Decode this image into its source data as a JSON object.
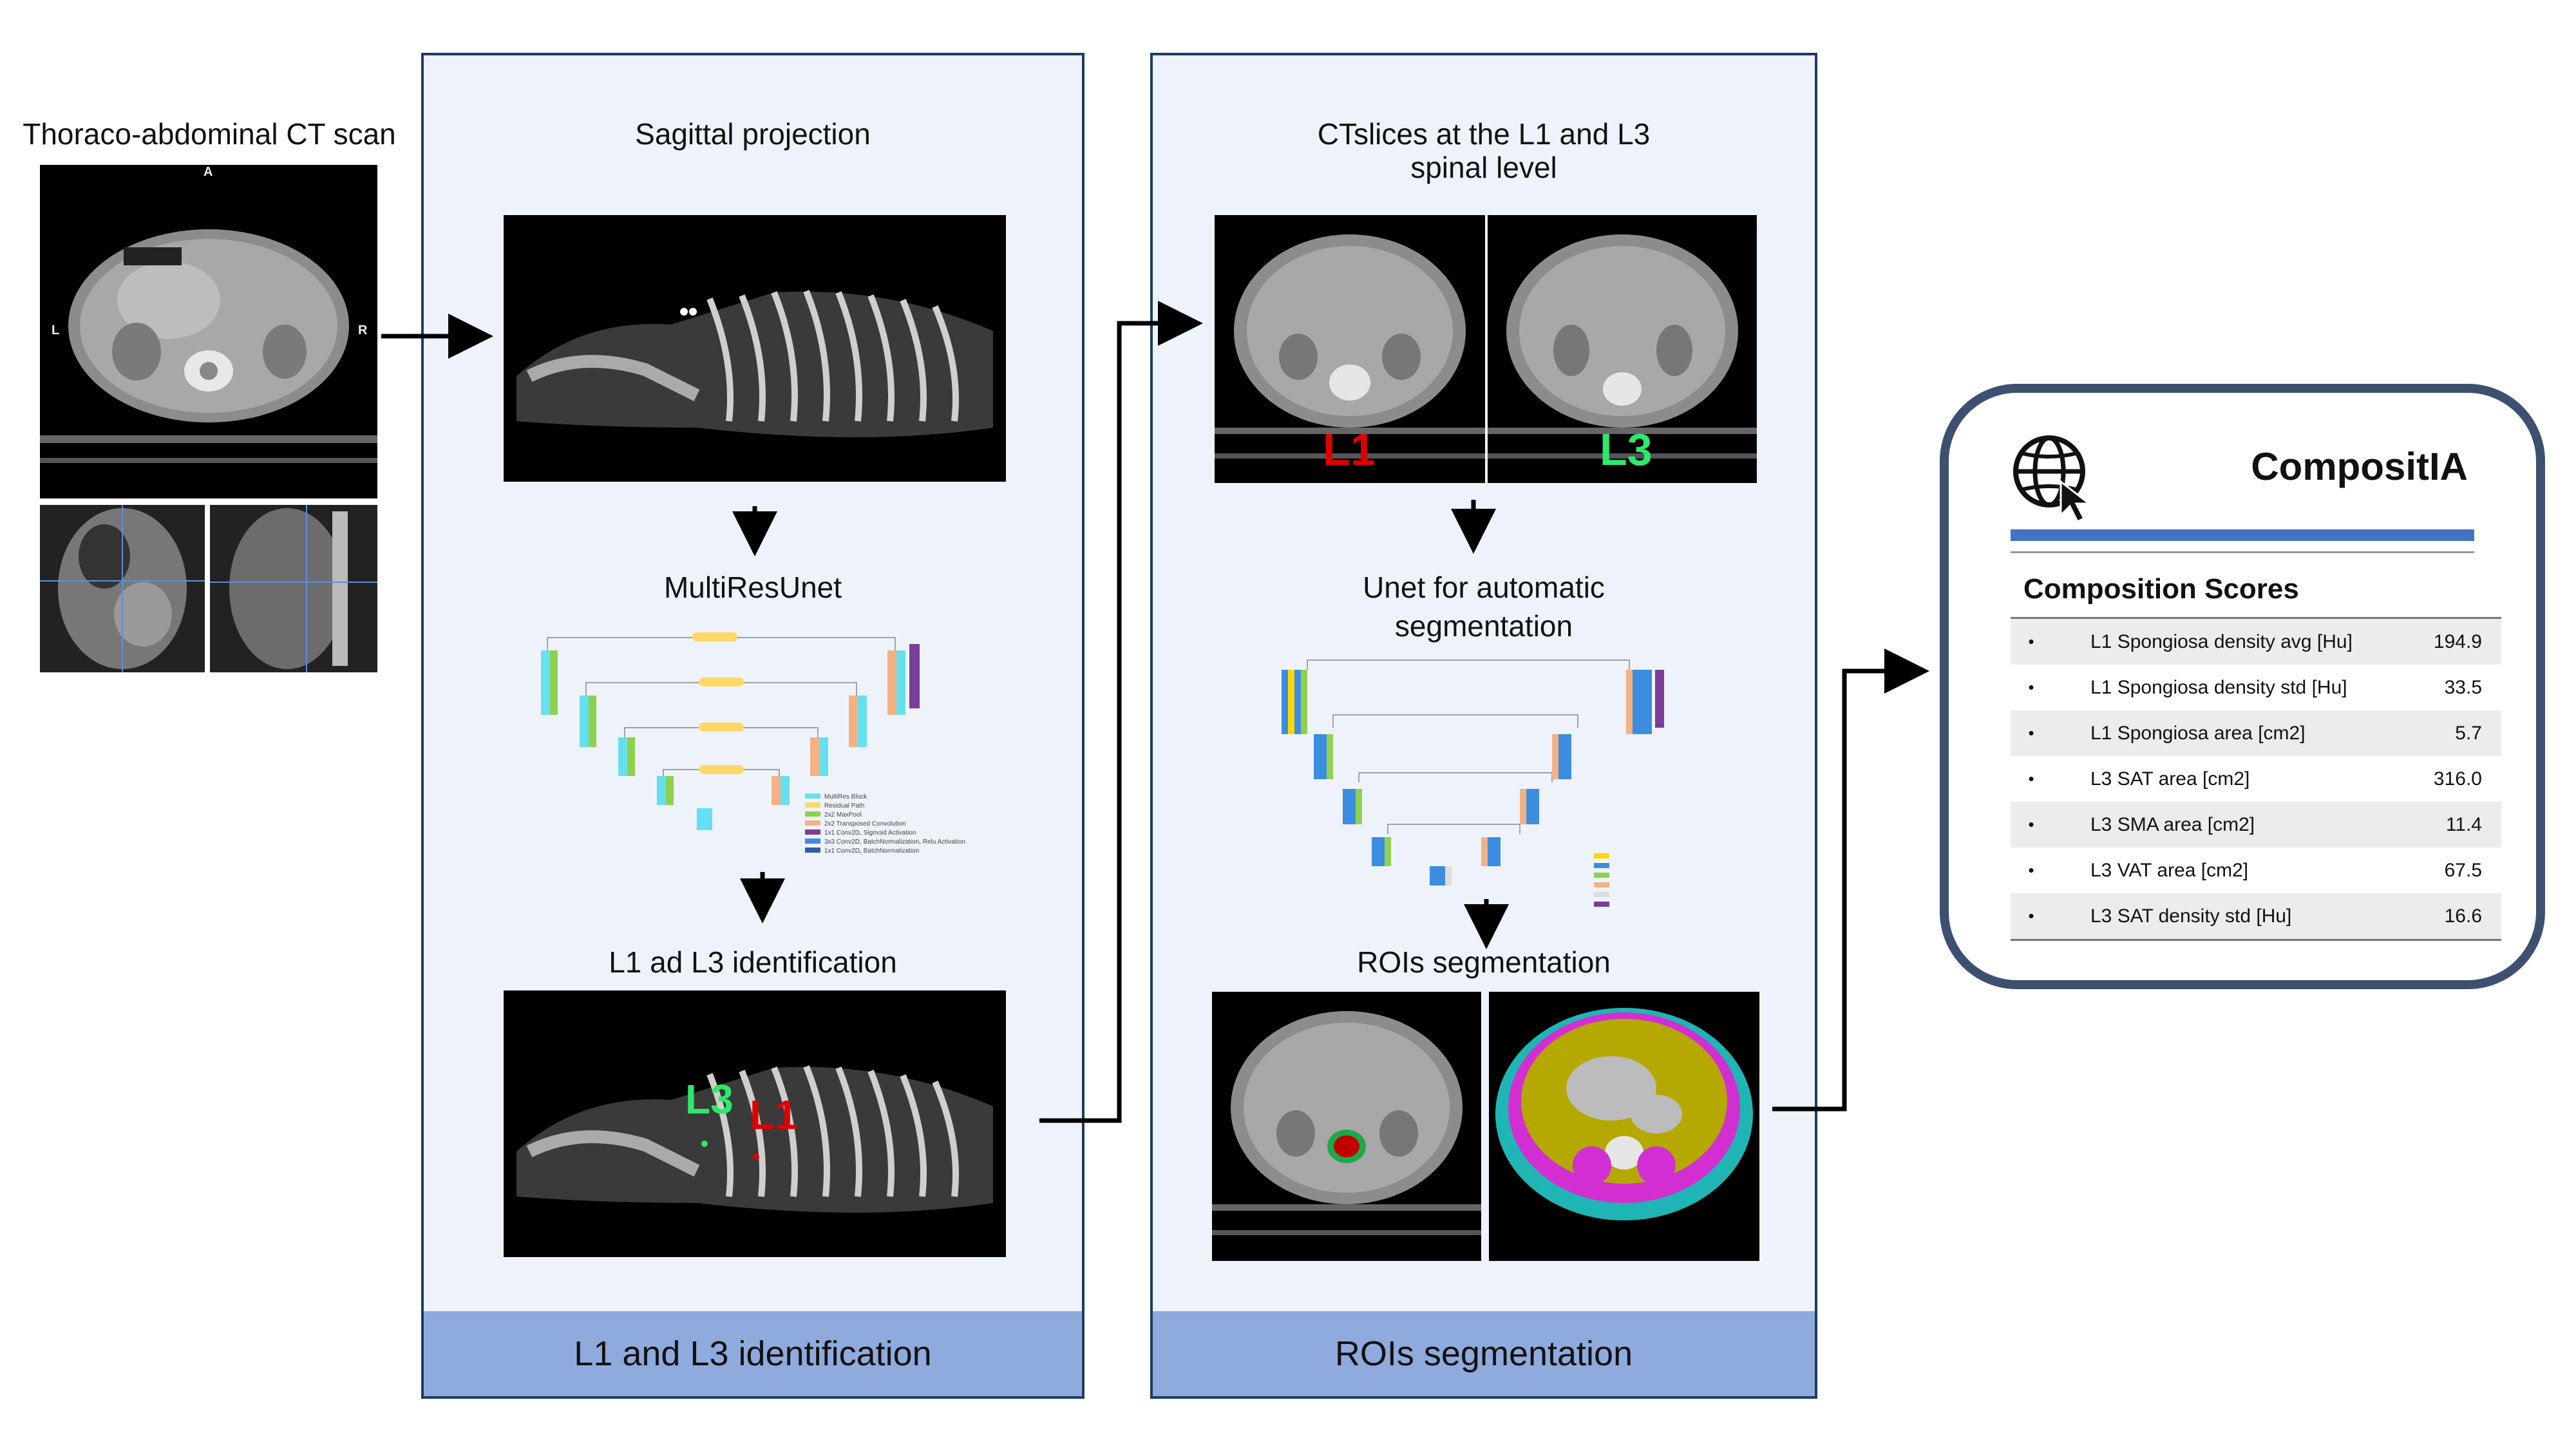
{
  "left": {
    "title": "Thoraco-abdominal CT scan",
    "orientation": {
      "top": "A",
      "left": "L",
      "right": "R"
    }
  },
  "panel1": {
    "sagittal_title": "Sagittal projection",
    "net_title": "MultiResUnet",
    "ident_title": "L1 ad L3 identification",
    "footer": "L1 and L3 identification",
    "labels": {
      "l1": "L1",
      "l3": "L3"
    }
  },
  "panel2": {
    "slices_title_line1": "CTslices at the L1 and L3",
    "slices_title_line2": "spinal level",
    "net_title_line1": "Unet for automatic",
    "net_title_line2": "segmentation",
    "roi_title": "ROIs segmentation",
    "footer": "ROIs segmentation",
    "labels": {
      "l1": "L1",
      "l3": "L3"
    }
  },
  "card": {
    "app_name": "CompositIA",
    "globe_icon": "globe-cursor-icon",
    "scores_title": "Composition Scores",
    "scores": [
      {
        "label": "L1 Spongiosa density avg [Hu]",
        "value": "194.9"
      },
      {
        "label": "L1 Spongiosa density std [Hu]",
        "value": "33.5"
      },
      {
        "label": "L1 Spongiosa area [cm2]",
        "value": "5.7"
      },
      {
        "label": "L3 SAT area [cm2]",
        "value": "316.0"
      },
      {
        "label": "L3 SMA area [cm2]",
        "value": "11.4"
      },
      {
        "label": "L3 VAT area [cm2]",
        "value": "67.5"
      },
      {
        "label": "L3 SAT density std [Hu]",
        "value": "16.6"
      }
    ]
  },
  "colors": {
    "panel_bg": "#eef3fb",
    "panel_border": "#1f3b63",
    "footer_bg": "#8faadc",
    "accent_bar": "#4472c4",
    "label_red": "#e00000",
    "label_green": "#2ee86a"
  }
}
